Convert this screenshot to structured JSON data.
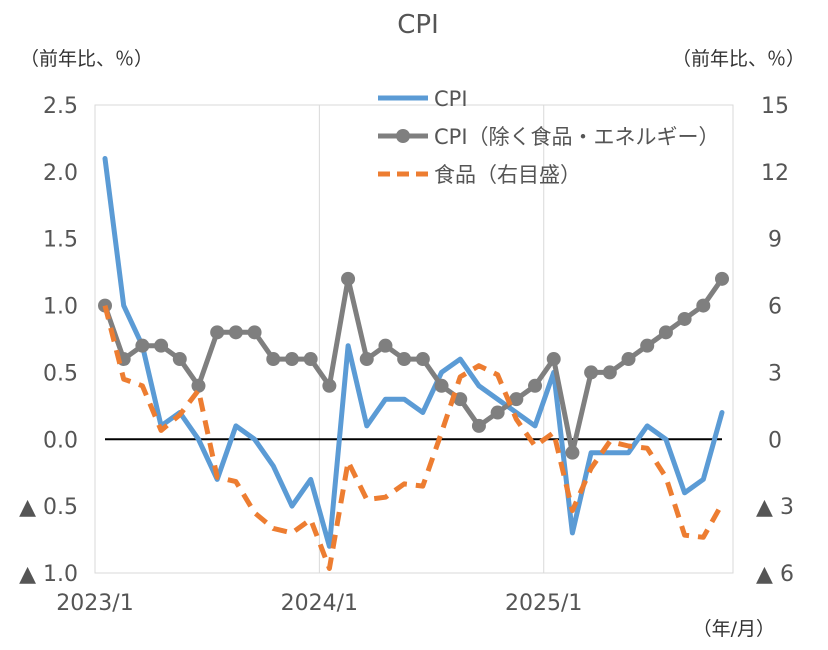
{
  "chart_data": {
    "type": "line",
    "title": "CPI",
    "left_unit": "（前年比、％）",
    "right_unit": "（前年比、％）",
    "xunit": "（年/月）",
    "x_ticks": [
      {
        "label": "2023/1",
        "index": 0
      },
      {
        "label": "2024/1",
        "index": 12
      },
      {
        "label": "2025/1",
        "index": 24
      }
    ],
    "ylim_left": [
      -1.0,
      2.5
    ],
    "ylim_right": [
      -6,
      15
    ],
    "y_ticks_left": [
      {
        "value": 2.5,
        "label": "2.5"
      },
      {
        "value": 2.0,
        "label": "2.0"
      },
      {
        "value": 1.5,
        "label": "1.5"
      },
      {
        "value": 1.0,
        "label": "1.0"
      },
      {
        "value": 0.5,
        "label": "0.5"
      },
      {
        "value": 0.0,
        "label": "0.0"
      },
      {
        "value": -0.5,
        "label": "▲ 0.5"
      },
      {
        "value": -1.0,
        "label": "▲ 1.0"
      }
    ],
    "y_ticks_right": [
      {
        "value": 15,
        "label": "15"
      },
      {
        "value": 12,
        "label": "12"
      },
      {
        "value": 9,
        "label": "9"
      },
      {
        "value": 6,
        "label": "6"
      },
      {
        "value": 3,
        "label": "3"
      },
      {
        "value": 0,
        "label": "0"
      },
      {
        "value": -3,
        "label": "▲ 3"
      },
      {
        "value": -6,
        "label": "▲ 6"
      }
    ],
    "n_points": 34,
    "series": [
      {
        "name": "CPI",
        "axis": "left",
        "color": "#5b9bd5",
        "style": "solid",
        "values": [
          2.1,
          1.0,
          0.7,
          0.1,
          0.2,
          0.0,
          -0.3,
          0.1,
          0.0,
          -0.2,
          -0.5,
          -0.3,
          -0.8,
          0.7,
          0.1,
          0.3,
          0.3,
          0.2,
          0.5,
          0.6,
          0.4,
          0.3,
          0.2,
          0.1,
          0.5,
          -0.7,
          -0.1,
          -0.1,
          -0.1,
          0.1,
          0.0,
          -0.4,
          -0.3,
          0.2
        ]
      },
      {
        "name": "CPI（除く食品・エネルギー）",
        "axis": "left",
        "color": "#7f7f7f",
        "style": "solid-marker",
        "values": [
          1.0,
          0.6,
          0.7,
          0.7,
          0.6,
          0.4,
          0.8,
          0.8,
          0.8,
          0.6,
          0.6,
          0.6,
          0.4,
          1.2,
          0.6,
          0.7,
          0.6,
          0.6,
          0.4,
          0.3,
          0.1,
          0.2,
          0.3,
          0.4,
          0.6,
          -0.1,
          0.5,
          0.5,
          0.6,
          0.7,
          0.8,
          0.9,
          1.0,
          1.2
        ]
      },
      {
        "name": "食品（右目盛）",
        "axis": "right",
        "color": "#ed7d31",
        "style": "dashed",
        "values": [
          6.0,
          2.7,
          2.4,
          0.4,
          1.1,
          2.2,
          -1.7,
          -1.9,
          -3.3,
          -4.0,
          -4.2,
          -3.6,
          -5.8,
          -1.0,
          -2.7,
          -2.6,
          -2.0,
          -2.1,
          0.3,
          2.8,
          3.3,
          2.9,
          0.9,
          -0.3,
          0.3,
          -3.2,
          -1.3,
          -0.1,
          -0.3,
          -0.4,
          -1.7,
          -4.3,
          -4.4,
          -2.9
        ]
      }
    ]
  }
}
